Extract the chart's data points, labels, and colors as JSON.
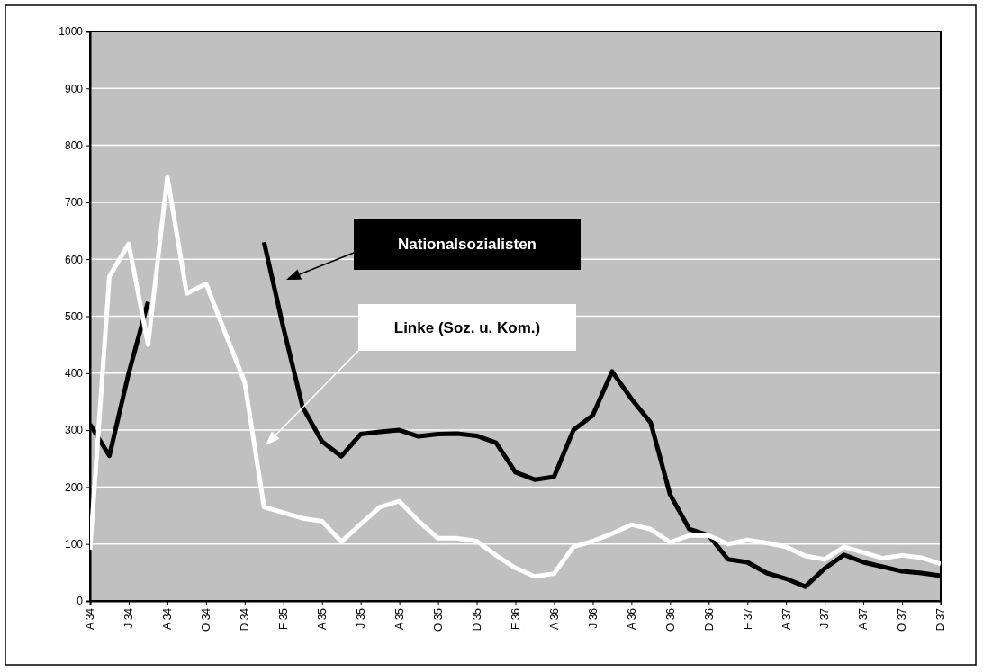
{
  "chart_data": {
    "type": "line",
    "categories": [
      "A 34",
      null,
      "J 34",
      null,
      "A 34",
      null,
      "O 34",
      null,
      "D 34",
      null,
      "F 35",
      null,
      "A 35",
      null,
      "J 35",
      null,
      "A 35",
      null,
      "O 35",
      null,
      "D 35",
      null,
      "F 36",
      null,
      "A 36",
      null,
      "J 36",
      null,
      "A 36",
      null,
      "O 36",
      null,
      "D 36",
      null,
      "F 37",
      null,
      "A 37",
      null,
      "J 37",
      null,
      "A 37",
      null,
      "O 37",
      null,
      "D 37"
    ],
    "series": [
      {
        "name": "Nationalsozialisten",
        "color": "#000000",
        "values": [
          310,
          255,
          400,
          525,
          null,
          null,
          null,
          null,
          null,
          630,
          480,
          340,
          280,
          254,
          293,
          297,
          300,
          289,
          293,
          294,
          290,
          278,
          226,
          213,
          218,
          300,
          326,
          403,
          355,
          313,
          187,
          126,
          115,
          73,
          68,
          49,
          39,
          25,
          57,
          81,
          68,
          60,
          52,
          49,
          44
        ]
      },
      {
        "name": "Linke (Soz. u. Kom.)",
        "color": "#ffffff",
        "values": [
          90,
          570,
          627,
          450,
          744,
          540,
          557,
          470,
          384,
          165,
          155,
          145,
          140,
          104,
          135,
          165,
          175,
          140,
          110,
          110,
          105,
          80,
          58,
          43,
          48,
          95,
          105,
          118,
          134,
          126,
          103,
          115,
          115,
          100,
          107,
          102,
          95,
          79,
          73,
          95,
          85,
          75,
          80,
          76,
          65
        ]
      }
    ],
    "ylim": [
      0,
      1000
    ],
    "yticks": [
      0,
      100,
      200,
      300,
      400,
      500,
      600,
      700,
      800,
      900,
      1000
    ],
    "grid": "y",
    "legend": false,
    "marker": "none",
    "line_style": "solid"
  }
}
